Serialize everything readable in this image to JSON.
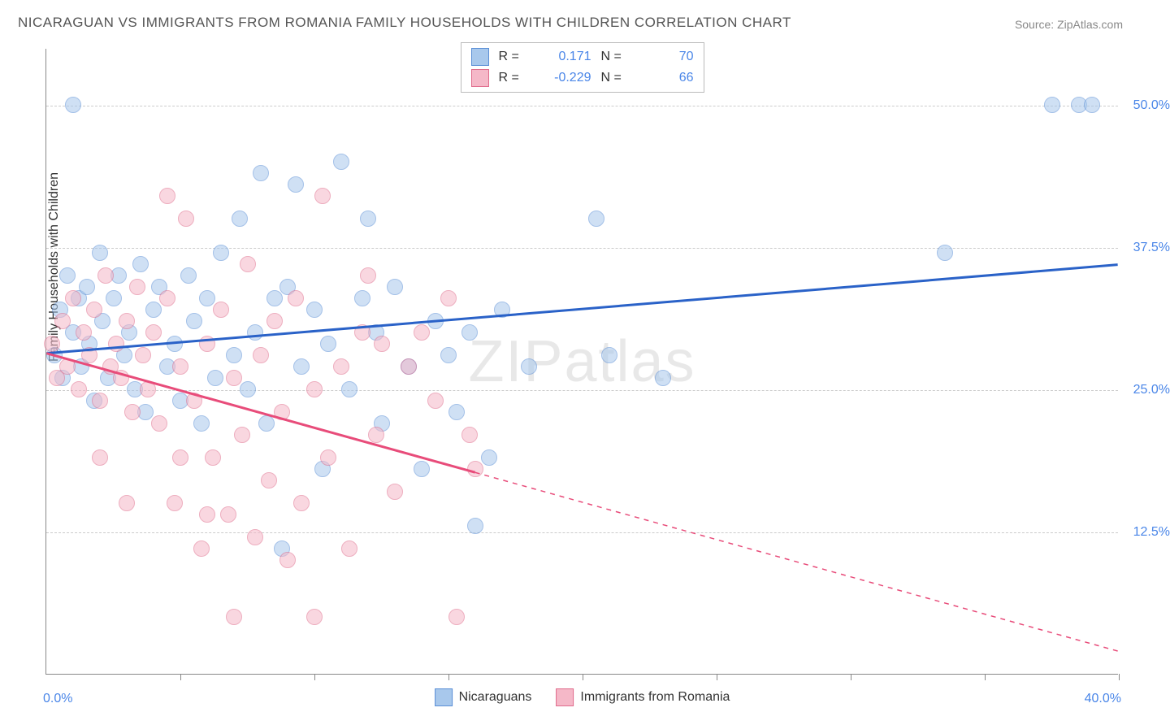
{
  "title": "NICARAGUAN VS IMMIGRANTS FROM ROMANIA FAMILY HOUSEHOLDS WITH CHILDREN CORRELATION CHART",
  "source": "Source: ZipAtlas.com",
  "watermark": "ZIPatlas",
  "ylabel": "Family Households with Children",
  "chart": {
    "type": "scatter",
    "background_color": "#ffffff",
    "grid_color": "#cccccc",
    "axis_color": "#888888",
    "xlim": [
      0,
      40
    ],
    "ylim": [
      0,
      55
    ],
    "xticks": [
      0,
      5,
      10,
      15,
      20,
      25,
      30,
      35,
      40
    ],
    "yticks": [
      12.5,
      25.0,
      37.5,
      50.0
    ],
    "ytick_labels": [
      "12.5%",
      "25.0%",
      "37.5%",
      "50.0%"
    ],
    "x_left_label": "0.0%",
    "x_right_label": "40.0%",
    "marker_radius": 10,
    "marker_opacity": 0.55,
    "label_fontsize": 16,
    "tick_color": "#4a86e8"
  },
  "legend_top": {
    "rows": [
      {
        "swatch_fill": "#a8c8ec",
        "swatch_border": "#5b8fd6",
        "r_label": "R =",
        "r_value": "0.171",
        "n_label": "N =",
        "n_value": "70"
      },
      {
        "swatch_fill": "#f5b8c8",
        "swatch_border": "#e06c8c",
        "r_label": "R =",
        "r_value": "-0.229",
        "n_label": "N =",
        "n_value": "66"
      }
    ]
  },
  "legend_bottom": {
    "items": [
      {
        "swatch_fill": "#a8c8ec",
        "swatch_border": "#5b8fd6",
        "label": "Nicaraguans"
      },
      {
        "swatch_fill": "#f5b8c8",
        "swatch_border": "#e06c8c",
        "label": "Immigrants from Romania"
      }
    ]
  },
  "series": [
    {
      "name": "Nicaraguans",
      "color_fill": "#a8c8ec",
      "color_border": "#5b8fd6",
      "trend": {
        "x1": 0,
        "y1": 28.2,
        "x2": 40,
        "y2": 36.0,
        "color": "#2a62c8",
        "width": 3,
        "solid_until_x": 40
      },
      "points": [
        [
          0.3,
          28
        ],
        [
          0.5,
          32
        ],
        [
          0.6,
          26
        ],
        [
          0.8,
          35
        ],
        [
          1.0,
          30
        ],
        [
          1.2,
          33
        ],
        [
          1.3,
          27
        ],
        [
          1.5,
          34
        ],
        [
          1.6,
          29
        ],
        [
          1.8,
          24
        ],
        [
          2.0,
          37
        ],
        [
          2.1,
          31
        ],
        [
          2.3,
          26
        ],
        [
          2.5,
          33
        ],
        [
          2.7,
          35
        ],
        [
          2.9,
          28
        ],
        [
          3.1,
          30
        ],
        [
          3.3,
          25
        ],
        [
          3.5,
          36
        ],
        [
          3.7,
          23
        ],
        [
          4.0,
          32
        ],
        [
          4.2,
          34
        ],
        [
          4.5,
          27
        ],
        [
          4.8,
          29
        ],
        [
          5.0,
          24
        ],
        [
          5.3,
          35
        ],
        [
          5.5,
          31
        ],
        [
          5.8,
          22
        ],
        [
          6.0,
          33
        ],
        [
          6.3,
          26
        ],
        [
          6.5,
          37
        ],
        [
          7.0,
          28
        ],
        [
          7.2,
          40
        ],
        [
          7.5,
          25
        ],
        [
          7.8,
          30
        ],
        [
          8.0,
          44
        ],
        [
          8.2,
          22
        ],
        [
          8.5,
          33
        ],
        [
          8.8,
          11
        ],
        [
          9.0,
          34
        ],
        [
          9.3,
          43
        ],
        [
          9.5,
          27
        ],
        [
          10.0,
          32
        ],
        [
          10.3,
          18
        ],
        [
          10.5,
          29
        ],
        [
          11.0,
          45
        ],
        [
          11.3,
          25
        ],
        [
          11.8,
          33
        ],
        [
          12.0,
          40
        ],
        [
          12.3,
          30
        ],
        [
          12.5,
          22
        ],
        [
          13.0,
          34
        ],
        [
          13.5,
          27
        ],
        [
          14.0,
          18
        ],
        [
          14.5,
          31
        ],
        [
          15.0,
          28
        ],
        [
          15.3,
          23
        ],
        [
          15.8,
          30
        ],
        [
          16.0,
          13
        ],
        [
          16.5,
          19
        ],
        [
          17.0,
          32
        ],
        [
          18.0,
          27
        ],
        [
          20.5,
          40
        ],
        [
          21.0,
          28
        ],
        [
          23.0,
          26
        ],
        [
          33.5,
          37
        ],
        [
          37.5,
          50
        ],
        [
          38.5,
          50
        ],
        [
          39.0,
          50
        ],
        [
          1.0,
          50
        ]
      ]
    },
    {
      "name": "Immigrants from Romania",
      "color_fill": "#f5b8c8",
      "color_border": "#e06c8c",
      "trend": {
        "x1": 0,
        "y1": 28.2,
        "x2": 40,
        "y2": 2.0,
        "color": "#e84c7a",
        "width": 3,
        "solid_until_x": 16
      },
      "points": [
        [
          0.2,
          29
        ],
        [
          0.4,
          26
        ],
        [
          0.6,
          31
        ],
        [
          0.8,
          27
        ],
        [
          1.0,
          33
        ],
        [
          1.2,
          25
        ],
        [
          1.4,
          30
        ],
        [
          1.6,
          28
        ],
        [
          1.8,
          32
        ],
        [
          2.0,
          24
        ],
        [
          2.2,
          35
        ],
        [
          2.4,
          27
        ],
        [
          2.6,
          29
        ],
        [
          2.8,
          26
        ],
        [
          3.0,
          31
        ],
        [
          3.2,
          23
        ],
        [
          3.4,
          34
        ],
        [
          3.6,
          28
        ],
        [
          3.8,
          25
        ],
        [
          4.0,
          30
        ],
        [
          4.2,
          22
        ],
        [
          4.5,
          33
        ],
        [
          4.8,
          15
        ],
        [
          5.0,
          27
        ],
        [
          5.2,
          40
        ],
        [
          5.5,
          24
        ],
        [
          5.8,
          11
        ],
        [
          6.0,
          29
        ],
        [
          6.2,
          19
        ],
        [
          6.5,
          32
        ],
        [
          6.8,
          14
        ],
        [
          7.0,
          26
        ],
        [
          7.3,
          21
        ],
        [
          7.5,
          36
        ],
        [
          7.8,
          12
        ],
        [
          8.0,
          28
        ],
        [
          8.3,
          17
        ],
        [
          8.5,
          31
        ],
        [
          8.8,
          23
        ],
        [
          9.0,
          10
        ],
        [
          9.3,
          33
        ],
        [
          9.5,
          15
        ],
        [
          10.0,
          25
        ],
        [
          10.3,
          42
        ],
        [
          10.5,
          19
        ],
        [
          11.0,
          27
        ],
        [
          11.3,
          11
        ],
        [
          11.8,
          30
        ],
        [
          12.0,
          35
        ],
        [
          12.3,
          21
        ],
        [
          12.5,
          29
        ],
        [
          13.0,
          16
        ],
        [
          13.5,
          27
        ],
        [
          14.0,
          30
        ],
        [
          14.5,
          24
        ],
        [
          15.0,
          33
        ],
        [
          15.3,
          5
        ],
        [
          15.8,
          21
        ],
        [
          16.0,
          18
        ],
        [
          10.0,
          5
        ],
        [
          7.0,
          5
        ],
        [
          4.5,
          42
        ],
        [
          3.0,
          15
        ],
        [
          2.0,
          19
        ],
        [
          5.0,
          19
        ],
        [
          6.0,
          14
        ]
      ]
    }
  ]
}
